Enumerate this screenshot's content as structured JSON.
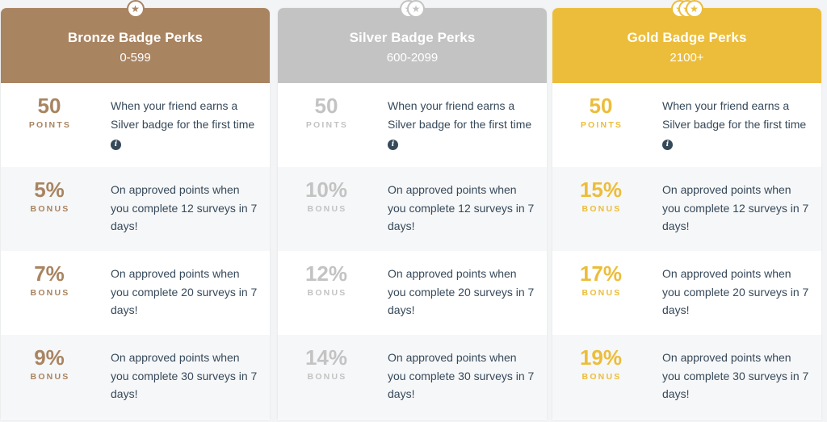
{
  "colors": {
    "bronze": "#a98461",
    "silver": "#c3c3c3",
    "gold": "#ecbd3a"
  },
  "tiers": [
    {
      "key": "bronze",
      "title": "Bronze Badge Perks",
      "range": "0-599",
      "badge_count": 1,
      "rows": [
        {
          "value": "50",
          "unit": "POINTS",
          "description": "When your friend earns a Silver badge for the first time",
          "info_icon": true
        },
        {
          "value": "5%",
          "unit": "BONUS",
          "description": "On approved points when you complete 12 surveys in 7 days!"
        },
        {
          "value": "7%",
          "unit": "BONUS",
          "description": "On approved points when you complete 20 surveys in 7 days!"
        },
        {
          "value": "9%",
          "unit": "BONUS",
          "description": "On approved points when you complete 30 surveys in 7 days!"
        }
      ]
    },
    {
      "key": "silver",
      "title": "Silver Badge Perks",
      "range": "600-2099",
      "badge_count": 2,
      "rows": [
        {
          "value": "50",
          "unit": "POINTS",
          "description": "When your friend earns a Silver badge for the first time",
          "info_icon": true
        },
        {
          "value": "10%",
          "unit": "BONUS",
          "description": "On approved points when you complete 12 surveys in 7 days!"
        },
        {
          "value": "12%",
          "unit": "BONUS",
          "description": "On approved points when you complete 20 surveys in 7 days!"
        },
        {
          "value": "14%",
          "unit": "BONUS",
          "description": "On approved points when you complete 30 surveys in 7 days!"
        }
      ]
    },
    {
      "key": "gold",
      "title": "Gold Badge Perks",
      "range": "2100+",
      "badge_count": 3,
      "rows": [
        {
          "value": "50",
          "unit": "POINTS",
          "description": "When your friend earns a Silver badge for the first time",
          "info_icon": true
        },
        {
          "value": "15%",
          "unit": "BONUS",
          "description": "On approved points when you complete 12 surveys in 7 days!"
        },
        {
          "value": "17%",
          "unit": "BONUS",
          "description": "On approved points when you complete 20 surveys in 7 days!"
        },
        {
          "value": "19%",
          "unit": "BONUS",
          "description": "On approved points when you complete 30 surveys in 7 days!"
        }
      ]
    }
  ]
}
